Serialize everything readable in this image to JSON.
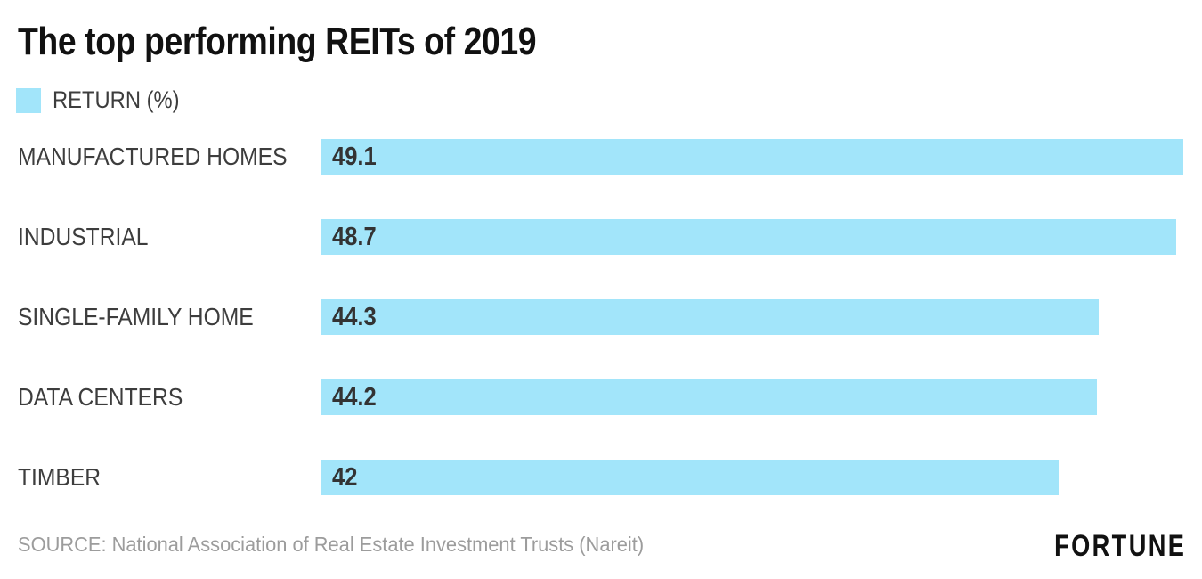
{
  "chart_data": {
    "type": "bar",
    "orientation": "horizontal",
    "title": "The top performing REITs of 2019",
    "legend": {
      "label": "RETURN (%)",
      "position": "top-left"
    },
    "categories": [
      "MANUFACTURED HOMES",
      "INDUSTRIAL",
      "SINGLE-FAMILY HOME",
      "DATA CENTERS",
      "TIMBER"
    ],
    "values": [
      49.1,
      48.7,
      44.3,
      44.2,
      42
    ],
    "value_labels": [
      "49.1",
      "48.7",
      "44.3",
      "44.2",
      "42"
    ],
    "xlim": [
      0,
      49.1
    ],
    "grid": false,
    "bar_color": "#A2E5FA",
    "source": "SOURCE: National Association of Real Estate Investment Trusts (Nareit)",
    "brand": "FORTUNE"
  }
}
